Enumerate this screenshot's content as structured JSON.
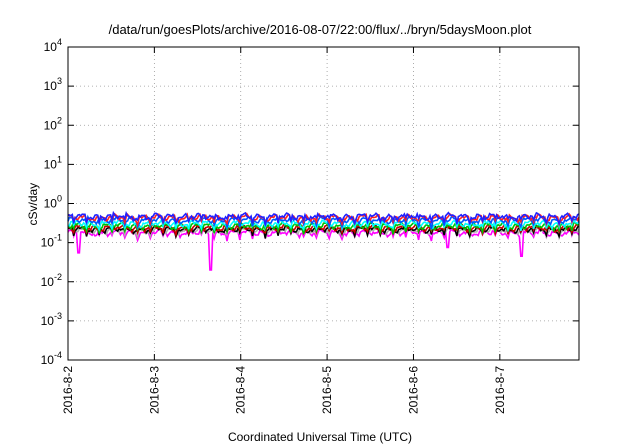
{
  "chart_data": {
    "type": "line",
    "title": "/data/run/goesPlots/archive/2016-08-07/22:00/flux/../bryn/5daysMoon.plot",
    "xlabel": "Coordinated Universal Time (UTC)",
    "ylabel": "cSv/day",
    "y_scale": "log",
    "ylim": [
      0.0001,
      10000
    ],
    "y_ticks": [
      {
        "value": 0.0001,
        "base": "10",
        "exp": "-4"
      },
      {
        "value": 0.001,
        "base": "10",
        "exp": "-3"
      },
      {
        "value": 0.01,
        "base": "10",
        "exp": "-2"
      },
      {
        "value": 0.1,
        "base": "10",
        "exp": "-1"
      },
      {
        "value": 1,
        "base": "10",
        "exp": "0"
      },
      {
        "value": 10,
        "base": "10",
        "exp": "1"
      },
      {
        "value": 100,
        "base": "10",
        "exp": "2"
      },
      {
        "value": 1000,
        "base": "10",
        "exp": "3"
      },
      {
        "value": 10000,
        "base": "10",
        "exp": "4"
      }
    ],
    "x_range": [
      "2016-08-02 00:00",
      "2016-08-07 22:00"
    ],
    "x_ticks": [
      "2016-8-2",
      "2016-8-3",
      "2016-8-4",
      "2016-8-5",
      "2016-8-6",
      "2016-8-7"
    ],
    "grid": true,
    "series": [
      {
        "color": "#ff00ff",
        "base": 0.18,
        "dips": [
          {
            "x": 0.12,
            "y": 0.055
          },
          {
            "x": 1.65,
            "y": 0.02
          },
          {
            "x": 4.4,
            "y": 0.075
          },
          {
            "x": 5.25,
            "y": 0.045
          }
        ]
      },
      {
        "color": "#b0b0b0",
        "base": 0.21,
        "dips": []
      },
      {
        "color": "#000000",
        "base": 0.22,
        "dips": []
      },
      {
        "color": "#cc0000",
        "base": 0.24,
        "dips": []
      },
      {
        "color": "#00c000",
        "base": 0.27,
        "dips": []
      },
      {
        "color": "#00ffff",
        "base": 0.31,
        "dips": []
      },
      {
        "color": "#0055ff",
        "base": 0.38,
        "dips": []
      },
      {
        "color": "#ff2020",
        "base": 0.44,
        "dips": []
      },
      {
        "color": "#2020ff",
        "base": 0.47,
        "dips": []
      }
    ]
  }
}
